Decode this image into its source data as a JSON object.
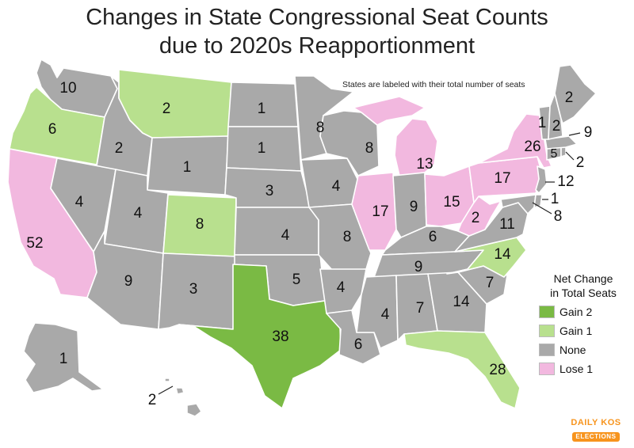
{
  "title": {
    "line1": "Changes in State Congressional Seat Counts",
    "line2": "due to 2020s Reapportionment"
  },
  "subtitle": "States are labeled with their total number of seats",
  "colors": {
    "gain2": "#7aba44",
    "gain1": "#b8e08e",
    "none": "#a9a9a9",
    "lose1": "#f2b8df",
    "border": "#ffffff"
  },
  "legend": {
    "title_line1": "Net Change",
    "title_line2": "in Total Seats",
    "items": [
      {
        "label": "Gain 2",
        "category": "gain2"
      },
      {
        "label": "Gain 1",
        "category": "gain1"
      },
      {
        "label": "None",
        "category": "none"
      },
      {
        "label": "Lose 1",
        "category": "lose1"
      }
    ]
  },
  "brand": {
    "top": "DAILY KOS",
    "bottom": "ELECTIONS"
  },
  "states": {
    "WA": {
      "seats": "10",
      "category": "none"
    },
    "OR": {
      "seats": "6",
      "category": "gain1"
    },
    "CA": {
      "seats": "52",
      "category": "lose1"
    },
    "ID": {
      "seats": "2",
      "category": "none"
    },
    "NV": {
      "seats": "4",
      "category": "none"
    },
    "MT": {
      "seats": "2",
      "category": "gain1"
    },
    "WY": {
      "seats": "1",
      "category": "none"
    },
    "UT": {
      "seats": "4",
      "category": "none"
    },
    "AZ": {
      "seats": "9",
      "category": "none"
    },
    "CO": {
      "seats": "8",
      "category": "gain1"
    },
    "NM": {
      "seats": "3",
      "category": "none"
    },
    "ND": {
      "seats": "1",
      "category": "none"
    },
    "SD": {
      "seats": "1",
      "category": "none"
    },
    "NE": {
      "seats": "3",
      "category": "none"
    },
    "KS": {
      "seats": "4",
      "category": "none"
    },
    "OK": {
      "seats": "5",
      "category": "none"
    },
    "TX": {
      "seats": "38",
      "category": "gain2"
    },
    "MN": {
      "seats": "8",
      "category": "none"
    },
    "IA": {
      "seats": "4",
      "category": "none"
    },
    "MO": {
      "seats": "8",
      "category": "none"
    },
    "AR": {
      "seats": "4",
      "category": "none"
    },
    "LA": {
      "seats": "6",
      "category": "none"
    },
    "WI": {
      "seats": "8",
      "category": "none"
    },
    "IL": {
      "seats": "17",
      "category": "lose1"
    },
    "MI": {
      "seats": "13",
      "category": "lose1"
    },
    "IN": {
      "seats": "9",
      "category": "none"
    },
    "OH": {
      "seats": "15",
      "category": "lose1"
    },
    "KY": {
      "seats": "6",
      "category": "none"
    },
    "TN": {
      "seats": "9",
      "category": "none"
    },
    "MS": {
      "seats": "4",
      "category": "none"
    },
    "AL": {
      "seats": "7",
      "category": "none"
    },
    "GA": {
      "seats": "14",
      "category": "none"
    },
    "FL": {
      "seats": "28",
      "category": "gain1"
    },
    "SC": {
      "seats": "7",
      "category": "none"
    },
    "NC": {
      "seats": "14",
      "category": "gain1"
    },
    "VA": {
      "seats": "11",
      "category": "none"
    },
    "WV": {
      "seats": "2",
      "category": "lose1"
    },
    "PA": {
      "seats": "17",
      "category": "lose1"
    },
    "NY": {
      "seats": "26",
      "category": "lose1"
    },
    "NJ": {
      "seats": "12",
      "category": "none"
    },
    "DE": {
      "seats": "1",
      "category": "none"
    },
    "MD": {
      "seats": "8",
      "category": "none"
    },
    "CT": {
      "seats": "5",
      "category": "none"
    },
    "RI": {
      "seats": "2",
      "category": "none"
    },
    "MA": {
      "seats": "9",
      "category": "none"
    },
    "VT": {
      "seats": "1",
      "category": "none"
    },
    "NH": {
      "seats": "2",
      "category": "none"
    },
    "ME": {
      "seats": "2",
      "category": "none"
    },
    "AK": {
      "seats": "1",
      "category": "none"
    },
    "HI": {
      "seats": "2",
      "category": "none"
    }
  }
}
